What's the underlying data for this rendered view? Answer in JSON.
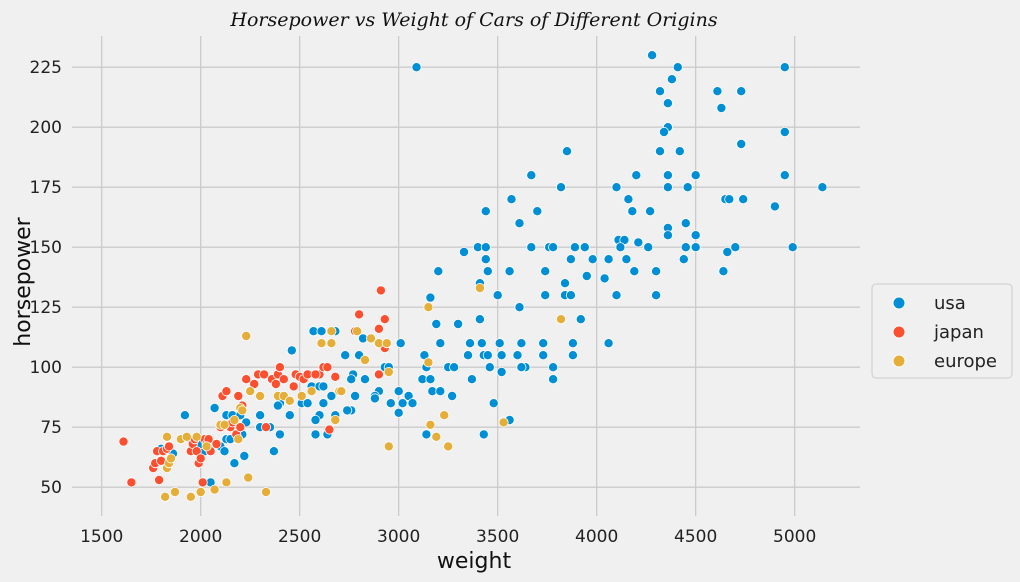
{
  "chart_data": {
    "type": "scatter",
    "title": "Horsepower vs Weight of Cars of Different Origins",
    "xlabel": "weight",
    "ylabel": "horsepower",
    "xlim": [
      1350,
      5330
    ],
    "ylim": [
      38,
      238
    ],
    "xticks": [
      1500,
      2000,
      2500,
      3000,
      3500,
      4000,
      4500,
      5000
    ],
    "yticks": [
      50,
      75,
      100,
      125,
      150,
      175,
      200,
      225
    ],
    "grid": true,
    "legend_position": "right",
    "series": [
      {
        "name": "usa",
        "color": "#008fd5",
        "points": [
          [
            3090,
            225
          ],
          [
            4280,
            230
          ],
          [
            4950,
            225
          ],
          [
            4410,
            225
          ],
          [
            4380,
            220
          ],
          [
            4320,
            215
          ],
          [
            4610,
            215
          ],
          [
            4730,
            215
          ],
          [
            4360,
            210
          ],
          [
            4630,
            208
          ],
          [
            4360,
            200
          ],
          [
            4340,
            198
          ],
          [
            4950,
            198
          ],
          [
            4730,
            193
          ],
          [
            3850,
            190
          ],
          [
            4320,
            190
          ],
          [
            4420,
            190
          ],
          [
            3670,
            180
          ],
          [
            4200,
            180
          ],
          [
            4360,
            180
          ],
          [
            4500,
            180
          ],
          [
            4950,
            180
          ],
          [
            3820,
            175
          ],
          [
            4100,
            175
          ],
          [
            4460,
            175
          ],
          [
            4360,
            175
          ],
          [
            5140,
            175
          ],
          [
            4160,
            170
          ],
          [
            4650,
            170
          ],
          [
            4670,
            170
          ],
          [
            4740,
            170
          ],
          [
            3570,
            170
          ],
          [
            4900,
            167
          ],
          [
            3440,
            165
          ],
          [
            3700,
            165
          ],
          [
            4180,
            165
          ],
          [
            4270,
            165
          ],
          [
            3610,
            160
          ],
          [
            4450,
            160
          ],
          [
            4360,
            158
          ],
          [
            4360,
            155
          ],
          [
            4500,
            155
          ],
          [
            4110,
            153
          ],
          [
            4140,
            153
          ],
          [
            4210,
            152
          ],
          [
            3400,
            150
          ],
          [
            3440,
            150
          ],
          [
            3670,
            150
          ],
          [
            3760,
            150
          ],
          [
            3780,
            150
          ],
          [
            3890,
            150
          ],
          [
            3940,
            150
          ],
          [
            4120,
            150
          ],
          [
            4260,
            150
          ],
          [
            4450,
            150
          ],
          [
            4500,
            150
          ],
          [
            4700,
            150
          ],
          [
            4990,
            150
          ],
          [
            3330,
            148
          ],
          [
            4660,
            148
          ],
          [
            3440,
            145
          ],
          [
            3870,
            145
          ],
          [
            3980,
            145
          ],
          [
            4060,
            145
          ],
          [
            4150,
            145
          ],
          [
            4440,
            145
          ],
          [
            3200,
            140
          ],
          [
            3450,
            140
          ],
          [
            3560,
            140
          ],
          [
            3740,
            140
          ],
          [
            4190,
            140
          ],
          [
            4300,
            140
          ],
          [
            4640,
            140
          ],
          [
            3950,
            138
          ],
          [
            4040,
            137
          ],
          [
            3410,
            135
          ],
          [
            3840,
            135
          ],
          [
            3740,
            130
          ],
          [
            3840,
            130
          ],
          [
            3870,
            130
          ],
          [
            4100,
            130
          ],
          [
            4300,
            130
          ],
          [
            3500,
            130
          ],
          [
            3160,
            129
          ],
          [
            3610,
            125
          ],
          [
            3920,
            120
          ],
          [
            3410,
            120
          ],
          [
            3190,
            118
          ],
          [
            3300,
            118
          ],
          [
            2570,
            115
          ],
          [
            2610,
            115
          ],
          [
            2680,
            115
          ],
          [
            2820,
            112
          ],
          [
            3010,
            110
          ],
          [
            3210,
            110
          ],
          [
            3360,
            110
          ],
          [
            3420,
            110
          ],
          [
            3510,
            110
          ],
          [
            3620,
            110
          ],
          [
            3730,
            110
          ],
          [
            3880,
            110
          ],
          [
            4060,
            110
          ],
          [
            2460,
            107
          ],
          [
            2800,
            105
          ],
          [
            3130,
            105
          ],
          [
            3350,
            105
          ],
          [
            3430,
            105
          ],
          [
            3450,
            105
          ],
          [
            3520,
            105
          ],
          [
            3600,
            105
          ],
          [
            3730,
            105
          ],
          [
            3880,
            105
          ],
          [
            2730,
            105
          ],
          [
            2930,
            100
          ],
          [
            2950,
            100
          ],
          [
            3140,
            100
          ],
          [
            3250,
            100
          ],
          [
            3280,
            100
          ],
          [
            3640,
            100
          ],
          [
            3620,
            100
          ],
          [
            3780,
            100
          ],
          [
            3460,
            100
          ],
          [
            3520,
            98
          ],
          [
            2580,
            97
          ],
          [
            2770,
            97
          ],
          [
            3120,
            95
          ],
          [
            3160,
            95
          ],
          [
            3370,
            95
          ],
          [
            3780,
            95
          ],
          [
            2560,
            92
          ],
          [
            2600,
            92
          ],
          [
            2620,
            92
          ],
          [
            2760,
            95
          ],
          [
            2830,
            95
          ],
          [
            3000,
            90
          ],
          [
            3170,
            90
          ],
          [
            3210,
            90
          ],
          [
            2900,
            90
          ],
          [
            2710,
            90
          ],
          [
            2420,
            88
          ],
          [
            2660,
            88
          ],
          [
            2880,
            88
          ],
          [
            3050,
            88
          ],
          [
            2780,
            88
          ],
          [
            3070,
            85
          ],
          [
            3270,
            88
          ],
          [
            3480,
            85
          ],
          [
            2400,
            85
          ],
          [
            2510,
            85
          ],
          [
            2540,
            85
          ],
          [
            2620,
            85
          ],
          [
            2390,
            84
          ],
          [
            2960,
            85
          ],
          [
            3020,
            85
          ],
          [
            2130,
            80
          ],
          [
            2160,
            80
          ],
          [
            2200,
            80
          ],
          [
            2300,
            80
          ],
          [
            2450,
            80
          ],
          [
            2600,
            80
          ],
          [
            2680,
            80
          ],
          [
            2760,
            82
          ],
          [
            3000,
            81
          ],
          [
            2120,
            76
          ],
          [
            2070,
            83
          ],
          [
            2230,
            77
          ],
          [
            2300,
            75
          ],
          [
            2350,
            75
          ],
          [
            2580,
            78
          ],
          [
            2740,
            82
          ],
          [
            2880,
            87
          ],
          [
            2130,
            70
          ],
          [
            2150,
            70
          ],
          [
            2190,
            70
          ],
          [
            2210,
            72
          ],
          [
            2400,
            72
          ],
          [
            2580,
            72
          ],
          [
            2640,
            72
          ],
          [
            3140,
            72
          ],
          [
            3430,
            72
          ],
          [
            3560,
            78
          ],
          [
            2070,
            68
          ],
          [
            2100,
            67
          ],
          [
            2120,
            65
          ],
          [
            2020,
            65
          ],
          [
            2050,
            65
          ],
          [
            2370,
            65
          ],
          [
            2220,
            63
          ],
          [
            2170,
            60
          ],
          [
            2050,
            52
          ],
          [
            1920,
            80
          ],
          [
            1800,
            66
          ],
          [
            1860,
            64
          ],
          [
            1950,
            70
          ],
          [
            2000,
            68
          ]
        ]
      },
      {
        "name": "japan",
        "color": "#fc4f30",
        "points": [
          [
            1610,
            69
          ],
          [
            1650,
            52
          ],
          [
            1760,
            58
          ],
          [
            1770,
            60
          ],
          [
            1780,
            65
          ],
          [
            1790,
            53
          ],
          [
            1800,
            61
          ],
          [
            1810,
            65
          ],
          [
            1830,
            66
          ],
          [
            1840,
            67
          ],
          [
            1950,
            65
          ],
          [
            1960,
            68
          ],
          [
            1970,
            70
          ],
          [
            1980,
            65
          ],
          [
            1990,
            60
          ],
          [
            2000,
            62
          ],
          [
            2010,
            52
          ],
          [
            2020,
            70
          ],
          [
            2030,
            68
          ],
          [
            2040,
            70
          ],
          [
            2050,
            65
          ],
          [
            2080,
            68
          ],
          [
            2100,
            75
          ],
          [
            2110,
            88
          ],
          [
            2130,
            90
          ],
          [
            2150,
            75
          ],
          [
            2160,
            77
          ],
          [
            2180,
            72
          ],
          [
            2190,
            88
          ],
          [
            2200,
            75
          ],
          [
            2210,
            84
          ],
          [
            2230,
            95
          ],
          [
            2250,
            90
          ],
          [
            2270,
            93
          ],
          [
            2290,
            97
          ],
          [
            2320,
            97
          ],
          [
            2330,
            75
          ],
          [
            2360,
            95
          ],
          [
            2380,
            93
          ],
          [
            2390,
            97
          ],
          [
            2400,
            100
          ],
          [
            2420,
            95
          ],
          [
            2480,
            97
          ],
          [
            2500,
            96
          ],
          [
            2520,
            95
          ],
          [
            2540,
            97
          ],
          [
            2600,
            97
          ],
          [
            2620,
            100
          ],
          [
            2640,
            100
          ],
          [
            2650,
            74
          ],
          [
            2680,
            96
          ],
          [
            2780,
            115
          ],
          [
            2800,
            122
          ],
          [
            2900,
            116
          ],
          [
            2910,
            132
          ],
          [
            2930,
            120
          ],
          [
            2930,
            108
          ],
          [
            2900,
            97
          ],
          [
            2580,
            97
          ],
          [
            2470,
            92
          ]
        ]
      },
      {
        "name": "europe",
        "color": "#e5ae38",
        "points": [
          [
            1820,
            46
          ],
          [
            1830,
            58
          ],
          [
            1840,
            60
          ],
          [
            1850,
            62
          ],
          [
            1870,
            48
          ],
          [
            1900,
            70
          ],
          [
            1930,
            71
          ],
          [
            1950,
            46
          ],
          [
            1980,
            71
          ],
          [
            2000,
            48
          ],
          [
            2030,
            67
          ],
          [
            2070,
            49
          ],
          [
            2100,
            76
          ],
          [
            2120,
            76
          ],
          [
            2130,
            52
          ],
          [
            2170,
            78
          ],
          [
            2190,
            70
          ],
          [
            2200,
            83
          ],
          [
            2210,
            82
          ],
          [
            2230,
            113
          ],
          [
            2240,
            54
          ],
          [
            2250,
            90
          ],
          [
            2300,
            88
          ],
          [
            2330,
            48
          ],
          [
            2390,
            88
          ],
          [
            2420,
            88
          ],
          [
            2450,
            86
          ],
          [
            2510,
            88
          ],
          [
            2560,
            90
          ],
          [
            2610,
            110
          ],
          [
            2660,
            115
          ],
          [
            2660,
            110
          ],
          [
            2680,
            78
          ],
          [
            2700,
            90
          ],
          [
            2710,
            90
          ],
          [
            2790,
            115
          ],
          [
            2830,
            103
          ],
          [
            2860,
            112
          ],
          [
            2900,
            110
          ],
          [
            2940,
            110
          ],
          [
            2950,
            98
          ],
          [
            2950,
            67
          ],
          [
            3150,
            125
          ],
          [
            3150,
            102
          ],
          [
            3160,
            76
          ],
          [
            3190,
            71
          ],
          [
            3230,
            80
          ],
          [
            3250,
            67
          ],
          [
            3410,
            133
          ],
          [
            3530,
            77
          ],
          [
            3820,
            120
          ],
          [
            1830,
            71
          ]
        ]
      }
    ]
  }
}
